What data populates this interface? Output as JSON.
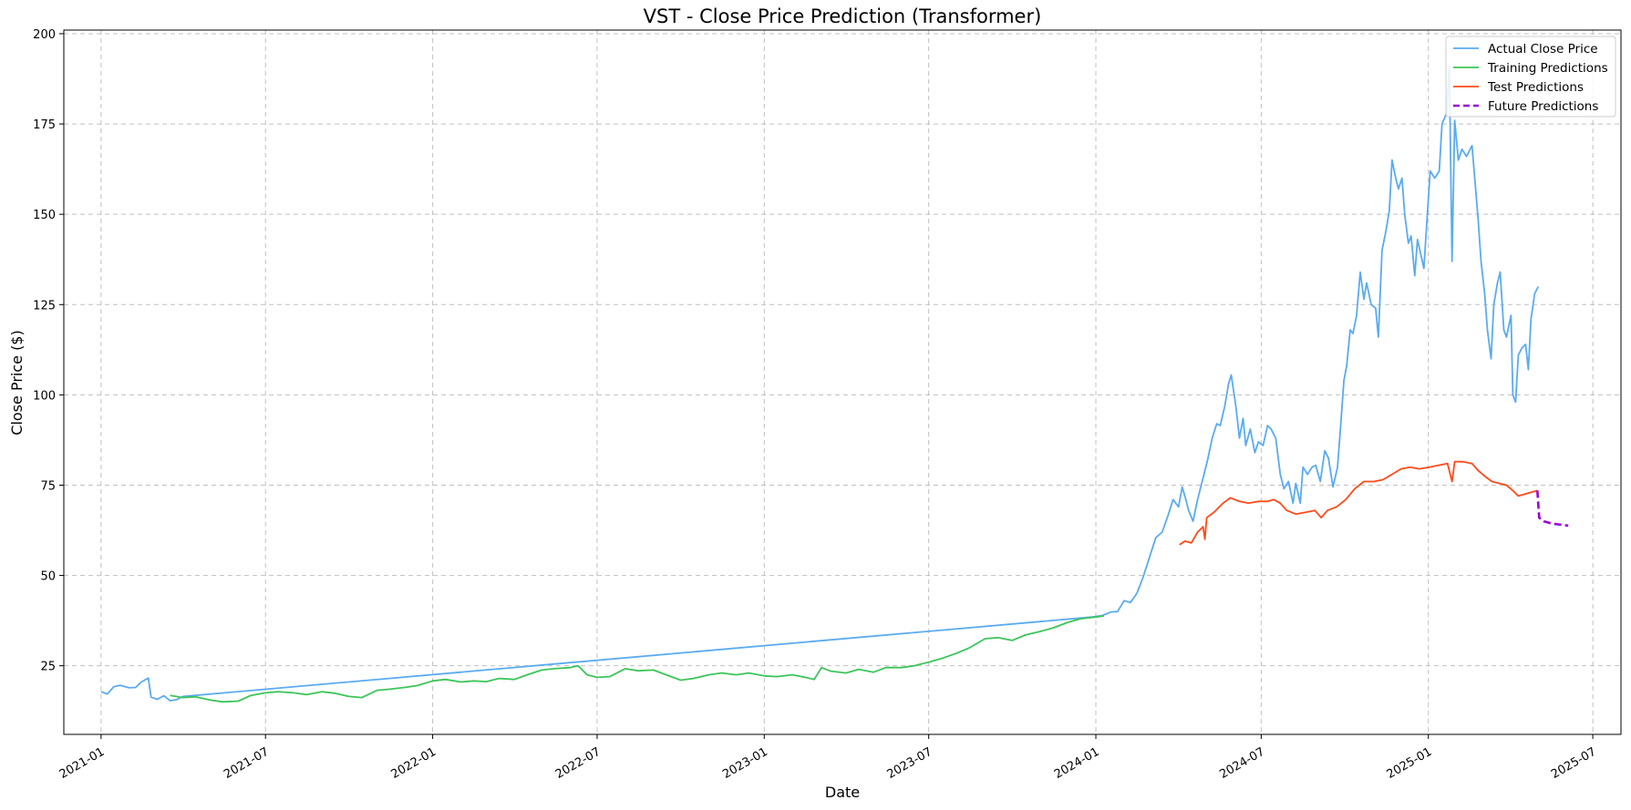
{
  "chart_data": {
    "type": "line",
    "title": "VST - Close Price Prediction (Transformer)",
    "xlabel": "Date",
    "ylabel": "Close Price ($)",
    "x_axis_type": "date",
    "xlim": [
      "2020-11-21",
      "2025-08-01"
    ],
    "ylim": [
      6,
      201
    ],
    "x_ticks": [
      "2021-01",
      "2021-07",
      "2022-01",
      "2022-07",
      "2023-01",
      "2023-07",
      "2024-01",
      "2024-07",
      "2025-01",
      "2025-07"
    ],
    "y_ticks": [
      25,
      50,
      75,
      100,
      125,
      150,
      175,
      200
    ],
    "grid": true,
    "legend_position": "top-right",
    "series": [
      {
        "name": "Actual Close Price",
        "color": "#5aabf0",
        "dash": "solid",
        "points": [
          [
            "2021-01-01",
            17.8
          ],
          [
            "2021-01-08",
            17.2
          ],
          [
            "2021-01-15",
            19.2
          ],
          [
            "2021-01-22",
            19.6
          ],
          [
            "2021-02-01",
            18.9
          ],
          [
            "2021-02-08",
            19.0
          ],
          [
            "2021-02-15",
            20.6
          ],
          [
            "2021-02-22",
            21.6
          ],
          [
            "2021-02-25",
            16.3
          ],
          [
            "2021-03-04",
            15.7
          ],
          [
            "2021-03-11",
            16.7
          ],
          [
            "2021-03-18",
            15.3
          ],
          [
            "2021-03-25",
            15.6
          ],
          [
            "2021-04-01",
            16.5
          ],
          [
            "2023-12-28",
            38.5
          ],
          [
            "2024-01-08",
            38.9
          ],
          [
            "2024-01-18",
            39.9
          ],
          [
            "2024-01-25",
            40.0
          ],
          [
            "2024-02-01",
            43.0
          ],
          [
            "2024-02-08",
            42.5
          ],
          [
            "2024-02-15",
            45.0
          ],
          [
            "2024-02-22",
            49.5
          ],
          [
            "2024-02-29",
            55.0
          ],
          [
            "2024-03-07",
            60.5
          ],
          [
            "2024-03-14",
            62.0
          ],
          [
            "2024-03-21",
            67.0
          ],
          [
            "2024-03-26",
            71.0
          ],
          [
            "2024-04-01",
            69.0
          ],
          [
            "2024-04-05",
            74.5
          ],
          [
            "2024-04-09",
            71.0
          ],
          [
            "2024-04-12",
            68.0
          ],
          [
            "2024-04-17",
            65.0
          ],
          [
            "2024-04-22",
            71.0
          ],
          [
            "2024-04-29",
            78.0
          ],
          [
            "2024-05-03",
            82.0
          ],
          [
            "2024-05-08",
            88.0
          ],
          [
            "2024-05-13",
            92.0
          ],
          [
            "2024-05-17",
            91.5
          ],
          [
            "2024-05-22",
            97.0
          ],
          [
            "2024-05-26",
            103.0
          ],
          [
            "2024-05-29",
            105.5
          ],
          [
            "2024-06-03",
            97.0
          ],
          [
            "2024-06-07",
            88.0
          ],
          [
            "2024-06-11",
            93.5
          ],
          [
            "2024-06-14",
            86.0
          ],
          [
            "2024-06-19",
            90.5
          ],
          [
            "2024-06-24",
            84.0
          ],
          [
            "2024-06-28",
            87.0
          ],
          [
            "2024-07-03",
            86.0
          ],
          [
            "2024-07-08",
            91.5
          ],
          [
            "2024-07-12",
            90.5
          ],
          [
            "2024-07-17",
            88.0
          ],
          [
            "2024-07-22",
            78.0
          ],
          [
            "2024-07-26",
            74.0
          ],
          [
            "2024-07-31",
            76.0
          ],
          [
            "2024-08-05",
            70.0
          ],
          [
            "2024-08-08",
            75.5
          ],
          [
            "2024-08-13",
            70.0
          ],
          [
            "2024-08-16",
            80.0
          ],
          [
            "2024-08-21",
            78.0
          ],
          [
            "2024-08-26",
            80.0
          ],
          [
            "2024-08-30",
            80.5
          ],
          [
            "2024-09-04",
            76.0
          ],
          [
            "2024-09-09",
            84.5
          ],
          [
            "2024-09-13",
            82.5
          ],
          [
            "2024-09-18",
            74.5
          ],
          [
            "2024-09-23",
            80.0
          ],
          [
            "2024-09-26",
            90.0
          ],
          [
            "2024-09-30",
            104.0
          ],
          [
            "2024-10-03",
            108.0
          ],
          [
            "2024-10-07",
            118.0
          ],
          [
            "2024-10-10",
            117.0
          ],
          [
            "2024-10-14",
            122.0
          ],
          [
            "2024-10-18",
            134.0
          ],
          [
            "2024-10-22",
            126.5
          ],
          [
            "2024-10-25",
            131.0
          ],
          [
            "2024-10-30",
            125.0
          ],
          [
            "2024-11-04",
            124.0
          ],
          [
            "2024-11-07",
            116.0
          ],
          [
            "2024-11-11",
            140.0
          ],
          [
            "2024-11-15",
            145.0
          ],
          [
            "2024-11-19",
            151.0
          ],
          [
            "2024-11-22",
            165.0
          ],
          [
            "2024-11-26",
            160.0
          ],
          [
            "2024-11-29",
            157.0
          ],
          [
            "2024-12-03",
            160.0
          ],
          [
            "2024-12-06",
            150.0
          ],
          [
            "2024-12-10",
            142.0
          ],
          [
            "2024-12-13",
            144.0
          ],
          [
            "2024-12-17",
            133.0
          ],
          [
            "2024-12-20",
            143.0
          ],
          [
            "2024-12-27",
            135.0
          ],
          [
            "2025-01-03",
            162.0
          ],
          [
            "2025-01-08",
            160.0
          ],
          [
            "2025-01-13",
            162.0
          ],
          [
            "2025-01-16",
            175.0
          ],
          [
            "2025-01-21",
            178.0
          ],
          [
            "2025-01-24",
            191.0
          ],
          [
            "2025-01-27",
            137.0
          ],
          [
            "2025-01-30",
            176.0
          ],
          [
            "2025-02-03",
            165.0
          ],
          [
            "2025-02-07",
            168.0
          ],
          [
            "2025-02-12",
            166.0
          ],
          [
            "2025-02-18",
            169.0
          ],
          [
            "2025-02-21",
            160.0
          ],
          [
            "2025-02-25",
            148.0
          ],
          [
            "2025-02-28",
            137.0
          ],
          [
            "2025-03-04",
            128.0
          ],
          [
            "2025-03-07",
            118.0
          ],
          [
            "2025-03-11",
            110.0
          ],
          [
            "2025-03-14",
            125.0
          ],
          [
            "2025-03-18",
            131.0
          ],
          [
            "2025-03-21",
            134.0
          ],
          [
            "2025-03-25",
            118.0
          ],
          [
            "2025-03-28",
            116.0
          ],
          [
            "2025-04-02",
            122.0
          ],
          [
            "2025-04-04",
            100.0
          ],
          [
            "2025-04-07",
            98.0
          ],
          [
            "2025-04-10",
            111.0
          ],
          [
            "2025-04-14",
            113.0
          ],
          [
            "2025-04-18",
            114.0
          ],
          [
            "2025-04-21",
            107.0
          ],
          [
            "2025-04-24",
            121.0
          ],
          [
            "2025-04-28",
            128.0
          ],
          [
            "2025-05-02",
            130.0
          ]
        ]
      },
      {
        "name": "Training Predictions",
        "color": "#3cc55a",
        "dash": "solid",
        "points": [
          [
            "2021-03-18",
            16.8
          ],
          [
            "2021-04-01",
            16.2
          ],
          [
            "2021-04-15",
            16.4
          ],
          [
            "2021-05-01",
            15.5
          ],
          [
            "2021-05-15",
            15.0
          ],
          [
            "2021-06-01",
            15.2
          ],
          [
            "2021-06-15",
            16.8
          ],
          [
            "2021-07-01",
            17.5
          ],
          [
            "2021-07-15",
            17.8
          ],
          [
            "2021-08-01",
            17.5
          ],
          [
            "2021-08-15",
            17.0
          ],
          [
            "2021-09-01",
            17.8
          ],
          [
            "2021-09-15",
            17.4
          ],
          [
            "2021-10-01",
            16.5
          ],
          [
            "2021-10-15",
            16.2
          ],
          [
            "2021-11-01",
            18.2
          ],
          [
            "2021-11-15",
            18.5
          ],
          [
            "2021-12-01",
            19.0
          ],
          [
            "2021-12-15",
            19.5
          ],
          [
            "2022-01-01",
            20.8
          ],
          [
            "2022-01-15",
            21.2
          ],
          [
            "2022-02-01",
            20.5
          ],
          [
            "2022-02-15",
            20.8
          ],
          [
            "2022-03-01",
            20.6
          ],
          [
            "2022-03-15",
            21.5
          ],
          [
            "2022-04-01",
            21.2
          ],
          [
            "2022-04-15",
            22.5
          ],
          [
            "2022-05-01",
            23.8
          ],
          [
            "2022-05-15",
            24.2
          ],
          [
            "2022-06-01",
            24.5
          ],
          [
            "2022-06-10",
            25.0
          ],
          [
            "2022-06-20",
            22.5
          ],
          [
            "2022-07-01",
            21.8
          ],
          [
            "2022-07-15",
            22.0
          ],
          [
            "2022-08-01",
            24.2
          ],
          [
            "2022-08-15",
            23.6
          ],
          [
            "2022-09-01",
            23.8
          ],
          [
            "2022-09-15",
            22.5
          ],
          [
            "2022-10-01",
            21.0
          ],
          [
            "2022-10-15",
            21.5
          ],
          [
            "2022-11-01",
            22.5
          ],
          [
            "2022-11-15",
            23.0
          ],
          [
            "2022-12-01",
            22.5
          ],
          [
            "2022-12-15",
            23.0
          ],
          [
            "2023-01-01",
            22.2
          ],
          [
            "2023-01-15",
            22.0
          ],
          [
            "2023-02-01",
            22.5
          ],
          [
            "2023-02-15",
            21.8
          ],
          [
            "2023-02-25",
            21.2
          ],
          [
            "2023-03-05",
            24.5
          ],
          [
            "2023-03-15",
            23.5
          ],
          [
            "2023-04-01",
            23.0
          ],
          [
            "2023-04-15",
            24.0
          ],
          [
            "2023-05-01",
            23.2
          ],
          [
            "2023-05-15",
            24.5
          ],
          [
            "2023-06-01",
            24.5
          ],
          [
            "2023-06-15",
            25.0
          ],
          [
            "2023-07-01",
            26.0
          ],
          [
            "2023-07-15",
            27.0
          ],
          [
            "2023-08-01",
            28.5
          ],
          [
            "2023-08-15",
            30.0
          ],
          [
            "2023-09-01",
            32.5
          ],
          [
            "2023-09-15",
            32.8
          ],
          [
            "2023-10-01",
            32.0
          ],
          [
            "2023-10-15",
            33.5
          ],
          [
            "2023-11-01",
            34.5
          ],
          [
            "2023-11-15",
            35.5
          ],
          [
            "2023-12-01",
            37.0
          ],
          [
            "2023-12-15",
            38.0
          ],
          [
            "2024-01-01",
            38.5
          ],
          [
            "2024-01-10",
            38.8
          ]
        ]
      },
      {
        "name": "Test Predictions",
        "color": "#ff4a1a",
        "dash": "solid",
        "points": [
          [
            "2024-04-02",
            58.5
          ],
          [
            "2024-04-08",
            59.5
          ],
          [
            "2024-04-15",
            59.0
          ],
          [
            "2024-04-22",
            62.0
          ],
          [
            "2024-04-28",
            63.5
          ],
          [
            "2024-04-30",
            60.0
          ],
          [
            "2024-05-02",
            66.0
          ],
          [
            "2024-05-10",
            67.5
          ],
          [
            "2024-05-20",
            70.0
          ],
          [
            "2024-05-28",
            71.5
          ],
          [
            "2024-06-07",
            70.5
          ],
          [
            "2024-06-17",
            70.0
          ],
          [
            "2024-06-28",
            70.5
          ],
          [
            "2024-07-08",
            70.5
          ],
          [
            "2024-07-15",
            71.0
          ],
          [
            "2024-07-22",
            70.0
          ],
          [
            "2024-07-29",
            68.0
          ],
          [
            "2024-08-08",
            67.0
          ],
          [
            "2024-08-19",
            67.5
          ],
          [
            "2024-08-29",
            68.0
          ],
          [
            "2024-09-05",
            66.0
          ],
          [
            "2024-09-12",
            68.0
          ],
          [
            "2024-09-22",
            69.0
          ],
          [
            "2024-10-02",
            71.0
          ],
          [
            "2024-10-12",
            74.0
          ],
          [
            "2024-10-22",
            76.0
          ],
          [
            "2024-11-02",
            76.0
          ],
          [
            "2024-11-12",
            76.5
          ],
          [
            "2024-11-22",
            78.0
          ],
          [
            "2024-12-02",
            79.5
          ],
          [
            "2024-12-12",
            80.0
          ],
          [
            "2024-12-22",
            79.5
          ],
          [
            "2025-01-02",
            80.0
          ],
          [
            "2025-01-12",
            80.5
          ],
          [
            "2025-01-22",
            81.0
          ],
          [
            "2025-01-27",
            76.0
          ],
          [
            "2025-01-30",
            81.5
          ],
          [
            "2025-02-08",
            81.5
          ],
          [
            "2025-02-18",
            81.0
          ],
          [
            "2025-02-25",
            79.0
          ],
          [
            "2025-03-04",
            77.5
          ],
          [
            "2025-03-12",
            76.0
          ],
          [
            "2025-03-20",
            75.5
          ],
          [
            "2025-03-28",
            75.0
          ],
          [
            "2025-04-04",
            73.5
          ],
          [
            "2025-04-10",
            72.0
          ],
          [
            "2025-04-17",
            72.5
          ],
          [
            "2025-04-24",
            73.0
          ],
          [
            "2025-05-01",
            73.5
          ]
        ]
      },
      {
        "name": "Future Predictions",
        "color": "#9a00d8",
        "dash": "dashed",
        "points": [
          [
            "2025-05-01",
            73.5
          ],
          [
            "2025-05-03",
            66.0
          ],
          [
            "2025-05-08",
            65.0
          ],
          [
            "2025-05-15",
            64.5
          ],
          [
            "2025-05-22",
            64.2
          ],
          [
            "2025-05-29",
            64.0
          ],
          [
            "2025-06-04",
            63.8
          ]
        ]
      }
    ]
  }
}
